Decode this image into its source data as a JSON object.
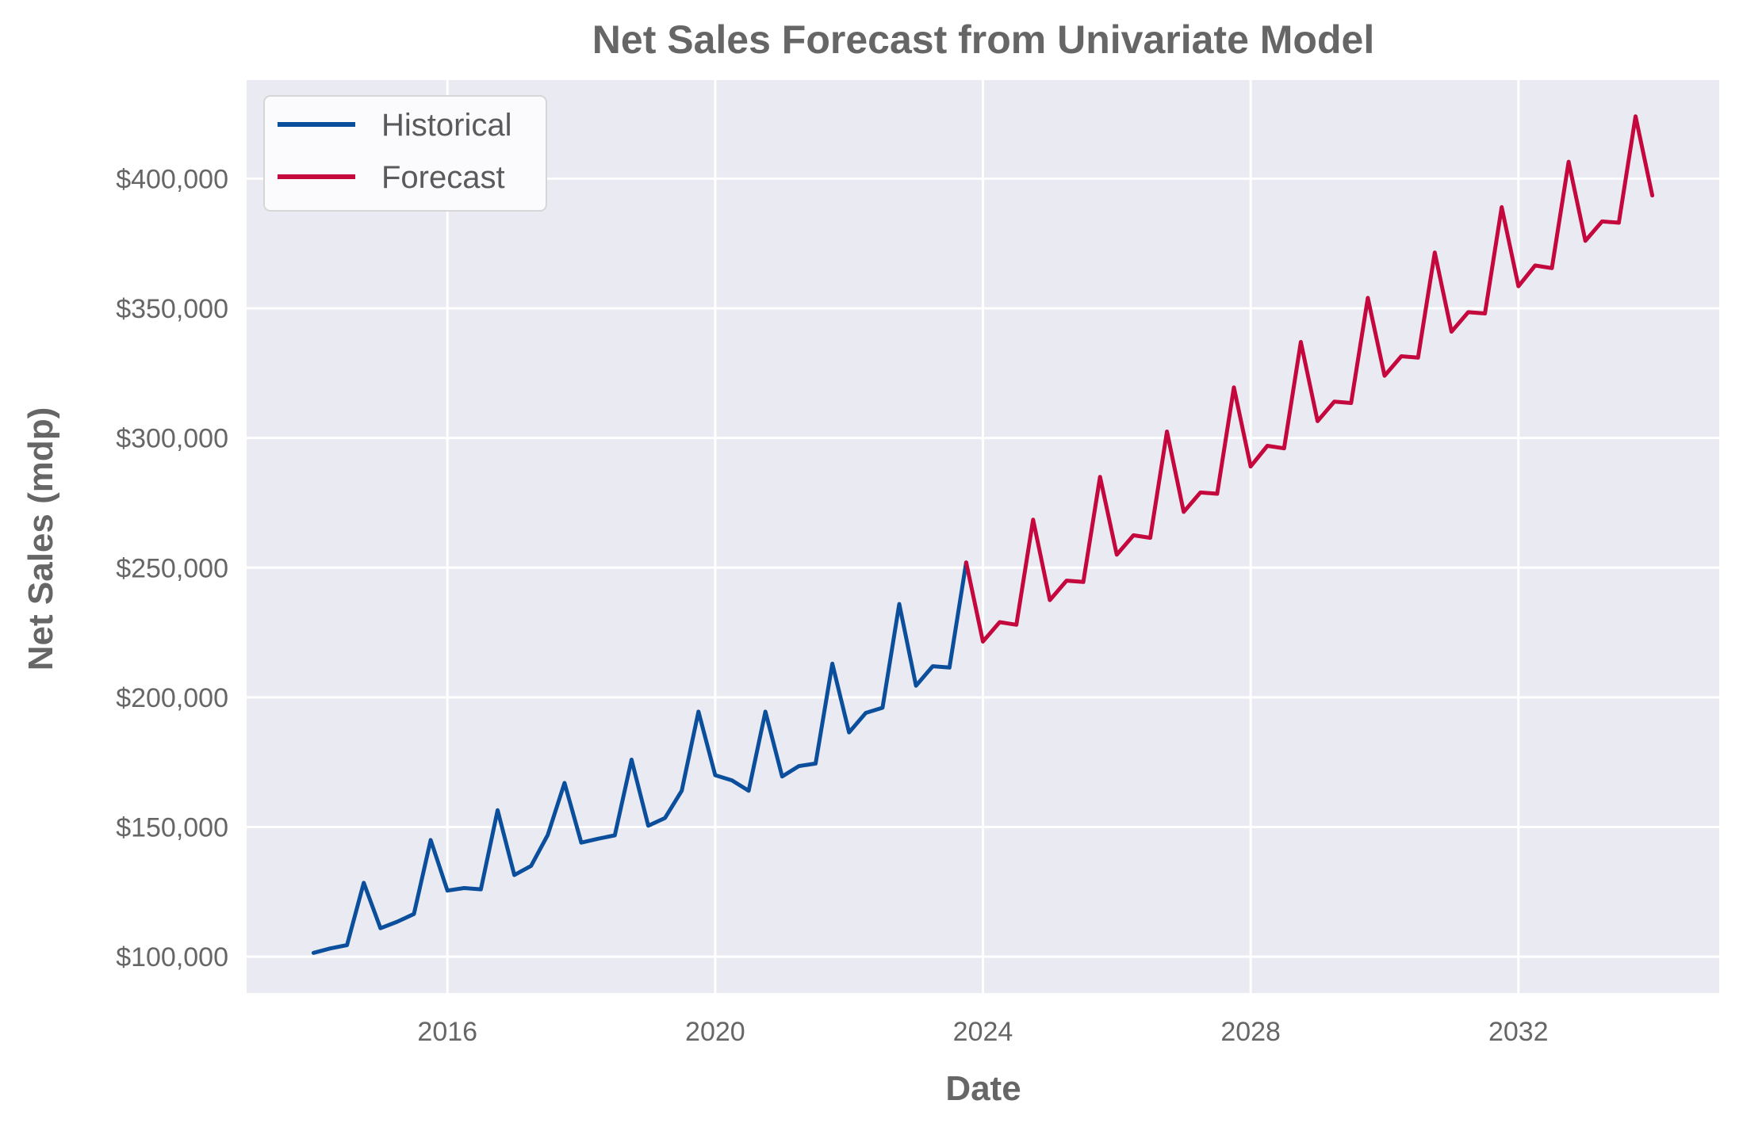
{
  "chart_data": {
    "type": "line",
    "title": "Net Sales Forecast from Univariate Model",
    "xlabel": "Date",
    "ylabel": "Net Sales (mdp)",
    "x_ticks": [
      "2016",
      "2020",
      "2024",
      "2028",
      "2032"
    ],
    "y_ticks": [
      "$100,000",
      "$150,000",
      "$200,000",
      "$250,000",
      "$300,000",
      "$350,000",
      "$400,000"
    ],
    "y_tick_values": [
      100000,
      150000,
      200000,
      250000,
      300000,
      350000,
      400000
    ],
    "xlim": [
      "2013-01-01",
      "2035-01-01"
    ],
    "ylim": [
      86000,
      438000
    ],
    "grid": true,
    "legend_position": "top-left",
    "colors": {
      "background": "#eaeaf2",
      "historical": "#0b4f9c",
      "forecast": "#c4073c",
      "grid": "#ffffff"
    },
    "series": [
      {
        "name": "Historical",
        "color": "#0b4f9c",
        "x": [
          "2014-01",
          "2014-04",
          "2014-07",
          "2014-10",
          "2015-01",
          "2015-04",
          "2015-07",
          "2015-10",
          "2016-01",
          "2016-04",
          "2016-07",
          "2016-10",
          "2017-01",
          "2017-04",
          "2017-07",
          "2017-10",
          "2018-01",
          "2018-04",
          "2018-07",
          "2018-10",
          "2019-01",
          "2019-04",
          "2019-07",
          "2019-10",
          "2020-01",
          "2020-04",
          "2020-07",
          "2020-10",
          "2021-01",
          "2021-04",
          "2021-07",
          "2021-10",
          "2022-01",
          "2022-04",
          "2022-07",
          "2022-10",
          "2023-01",
          "2023-04",
          "2023-07",
          "2023-10"
        ],
        "y": [
          101500,
          103200,
          104500,
          128500,
          111000,
          113500,
          116500,
          145000,
          125500,
          126500,
          126000,
          156500,
          131500,
          135000,
          147000,
          167000,
          144000,
          145500,
          146800,
          176000,
          150500,
          153500,
          164000,
          194500,
          170000,
          168000,
          164000,
          194500,
          169500,
          173500,
          174500,
          213000,
          186500,
          194000,
          196000,
          236000,
          204500,
          212000,
          211500,
          252000
        ]
      },
      {
        "name": "Forecast",
        "color": "#c4073c",
        "x": [
          "2023-10",
          "2024-01",
          "2024-04",
          "2024-07",
          "2024-10",
          "2025-01",
          "2025-04",
          "2025-07",
          "2025-10",
          "2026-01",
          "2026-04",
          "2026-07",
          "2026-10",
          "2027-01",
          "2027-04",
          "2027-07",
          "2027-10",
          "2028-01",
          "2028-04",
          "2028-07",
          "2028-10",
          "2029-01",
          "2029-04",
          "2029-07",
          "2029-10",
          "2030-01",
          "2030-04",
          "2030-07",
          "2030-10",
          "2031-01",
          "2031-04",
          "2031-07",
          "2031-10",
          "2032-01",
          "2032-04",
          "2032-07",
          "2032-10",
          "2033-01",
          "2033-04",
          "2033-07",
          "2033-10",
          "2034-01"
        ],
        "y": [
          252000,
          221500,
          229000,
          228000,
          268500,
          237500,
          245000,
          244500,
          285000,
          255000,
          262500,
          261500,
          302500,
          271500,
          279000,
          278500,
          319500,
          289000,
          297000,
          296000,
          337000,
          306500,
          314000,
          313500,
          354000,
          324000,
          331500,
          331000,
          371500,
          341000,
          348500,
          348000,
          389000,
          358500,
          366500,
          365500,
          406500,
          376000,
          383500,
          383000,
          424000,
          393500
        ]
      }
    ]
  }
}
